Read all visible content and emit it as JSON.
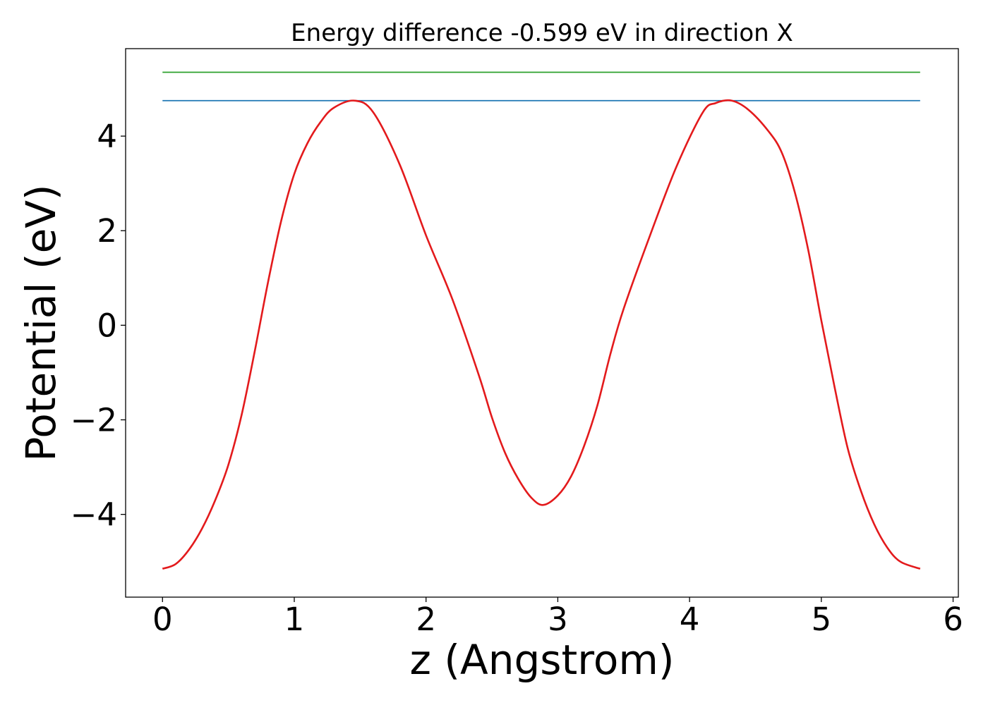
{
  "chart_data": {
    "type": "line",
    "title": "Energy difference -0.599 eV in direction X",
    "xlabel": "z (Angstrom)",
    "ylabel": "Potential (eV)",
    "xlim": [
      -0.28,
      6.04
    ],
    "ylim": [
      -5.75,
      5.85
    ],
    "xticks": [
      0,
      1,
      2,
      3,
      4,
      5,
      6
    ],
    "xtick_labels": [
      "0",
      "1",
      "2",
      "3",
      "4",
      "5",
      "6"
    ],
    "yticks": [
      -4,
      -2,
      0,
      2,
      4
    ],
    "ytick_labels": [
      "−4",
      "−2",
      "0",
      "2",
      "4"
    ],
    "grid": false,
    "legend": "none",
    "series": [
      {
        "kind": "curve",
        "color": "#e31a1c",
        "x": [
          0.0,
          0.1,
          0.2,
          0.3,
          0.4,
          0.5,
          0.6,
          0.7,
          0.8,
          0.9,
          1.0,
          1.1,
          1.2,
          1.3,
          1.46,
          1.6,
          1.8,
          2.0,
          2.2,
          2.4,
          2.5,
          2.6,
          2.7,
          2.8,
          2.89,
          3.0,
          3.1,
          3.2,
          3.3,
          3.4,
          3.5,
          3.7,
          3.9,
          4.1,
          4.2,
          4.32,
          4.45,
          4.6,
          4.7,
          4.8,
          4.9,
          5.0,
          5.1,
          5.2,
          5.3,
          5.4,
          5.5,
          5.6,
          5.75
        ],
        "y": [
          -5.15,
          -5.05,
          -4.75,
          -4.3,
          -3.7,
          -2.95,
          -1.9,
          -0.55,
          0.9,
          2.2,
          3.2,
          3.85,
          4.3,
          4.6,
          4.75,
          4.5,
          3.4,
          1.9,
          0.55,
          -1.05,
          -1.95,
          -2.7,
          -3.25,
          -3.65,
          -3.8,
          -3.6,
          -3.2,
          -2.55,
          -1.7,
          -0.6,
          0.35,
          1.9,
          3.35,
          4.5,
          4.7,
          4.75,
          4.55,
          4.1,
          3.65,
          2.8,
          1.6,
          0.1,
          -1.3,
          -2.6,
          -3.5,
          -4.2,
          -4.7,
          -5.0,
          -5.15
        ]
      },
      {
        "kind": "hline",
        "color": "#1f77b4",
        "x": [
          0.0,
          5.75
        ],
        "y": [
          4.75,
          4.75
        ]
      },
      {
        "kind": "hline",
        "color": "#2ca02c",
        "x": [
          0.0,
          5.75
        ],
        "y": [
          5.35,
          5.35
        ]
      }
    ]
  }
}
